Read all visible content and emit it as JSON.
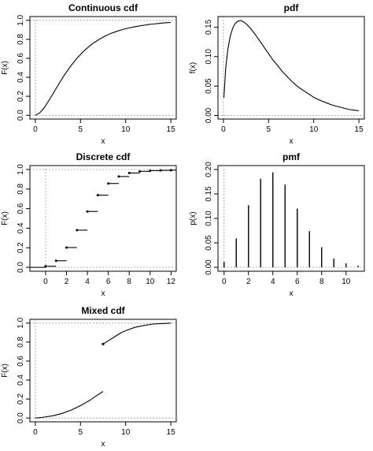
{
  "chart_data": [
    {
      "id": "continuous-cdf",
      "type": "line",
      "title": "Continuous cdf",
      "xlabel": "x",
      "ylabel": "F(x)",
      "xlim": [
        -0.6,
        15.6
      ],
      "ylim": [
        -0.04,
        1.04
      ],
      "xticks": [
        0,
        5,
        10,
        15
      ],
      "yticks": [
        0.0,
        0.2,
        0.4,
        0.6,
        0.8,
        1.0
      ],
      "ytick_labels": [
        "0.0",
        "0.2",
        "0.4",
        "0.6",
        "0.8",
        "1.0"
      ],
      "ref_hlines": [
        0,
        1
      ],
      "ref_vline": 0,
      "x": [
        0,
        0.5,
        1,
        1.5,
        2,
        2.5,
        3,
        3.5,
        4,
        4.5,
        5,
        5.5,
        6,
        6.5,
        7,
        7.5,
        8,
        8.5,
        9,
        9.5,
        10,
        10.5,
        11,
        11.5,
        12,
        12.5,
        13,
        13.5,
        14,
        14.5,
        15
      ],
      "y": [
        0.0,
        0.026,
        0.081,
        0.155,
        0.234,
        0.314,
        0.391,
        0.463,
        0.529,
        0.588,
        0.641,
        0.688,
        0.729,
        0.765,
        0.796,
        0.823,
        0.847,
        0.867,
        0.884,
        0.899,
        0.912,
        0.923,
        0.933,
        0.941,
        0.949,
        0.955,
        0.961,
        0.966,
        0.971,
        0.975,
        0.978
      ]
    },
    {
      "id": "pdf",
      "type": "line",
      "title": "pdf",
      "xlabel": "x",
      "ylabel": "f(x)",
      "xlim": [
        -0.6,
        15.6
      ],
      "ylim": [
        -0.006,
        0.168
      ],
      "xticks": [
        0,
        5,
        10,
        15
      ],
      "yticks": [
        0.0,
        0.05,
        0.1,
        0.15
      ],
      "ytick_labels": [
        "0.00",
        "0.05",
        "0.10",
        "0.15"
      ],
      "ref_hlines": [
        0
      ],
      "ref_vline": 0,
      "x": [
        0.05,
        0.25,
        0.5,
        0.75,
        1,
        1.25,
        1.5,
        1.75,
        2,
        2.5,
        3,
        3.5,
        4,
        4.5,
        5,
        5.5,
        6,
        6.5,
        7,
        7.5,
        8,
        8.5,
        9,
        9.5,
        10,
        10.5,
        11,
        11.5,
        12,
        12.5,
        13,
        13.5,
        14,
        14.5,
        15
      ],
      "y": [
        0.03,
        0.08,
        0.113,
        0.134,
        0.147,
        0.155,
        0.159,
        0.161,
        0.161,
        0.156,
        0.148,
        0.138,
        0.127,
        0.116,
        0.105,
        0.094,
        0.085,
        0.075,
        0.067,
        0.059,
        0.052,
        0.046,
        0.041,
        0.036,
        0.031,
        0.027,
        0.024,
        0.021,
        0.018,
        0.016,
        0.014,
        0.012,
        0.01,
        0.009,
        0.008
      ]
    },
    {
      "id": "discrete-cdf",
      "type": "step",
      "title": "Discrete cdf",
      "xlabel": "x",
      "ylabel": "F(x)",
      "xlim": [
        -1.5,
        12.5
      ],
      "ylim": [
        -0.04,
        1.04
      ],
      "xticks": [
        0,
        2,
        4,
        6,
        8,
        10,
        12
      ],
      "yticks": [
        0.0,
        0.2,
        0.4,
        0.6,
        0.8,
        1.0
      ],
      "ytick_labels": [
        "0.0",
        "0.2",
        "0.4",
        "0.6",
        "0.8",
        "1.0"
      ],
      "ref_hlines": [
        0,
        1
      ],
      "ref_vline": 0,
      "x": [
        -2,
        0,
        1,
        2,
        3,
        4,
        5,
        6,
        7,
        8,
        9,
        10,
        11,
        12
      ],
      "y": [
        0.0,
        0.011,
        0.067,
        0.202,
        0.38,
        0.571,
        0.738,
        0.857,
        0.928,
        0.964,
        0.981,
        0.988,
        0.991,
        0.993
      ]
    },
    {
      "id": "pmf",
      "type": "bar",
      "title": "pmf",
      "xlabel": "x",
      "ylabel": "p(x)",
      "xlim": [
        -0.5,
        11.5
      ],
      "ylim": [
        -0.008,
        0.208
      ],
      "xticks": [
        0,
        2,
        4,
        6,
        8,
        10
      ],
      "yticks": [
        0.0,
        0.05,
        0.1,
        0.15,
        0.2
      ],
      "ytick_labels": [
        "0.00",
        "0.05",
        "0.10",
        "0.15",
        "0.20"
      ],
      "ref_hlines": [
        0
      ],
      "ref_vline": 0,
      "x": [
        0,
        1,
        2,
        3,
        4,
        5,
        6,
        7,
        8,
        9,
        10,
        11
      ],
      "y": [
        0.011,
        0.059,
        0.127,
        0.181,
        0.194,
        0.169,
        0.12,
        0.074,
        0.041,
        0.018,
        0.008,
        0.003
      ]
    },
    {
      "id": "mixed-cdf",
      "type": "line",
      "title": "Mixed cdf",
      "xlabel": "x",
      "ylabel": "F(x)",
      "xlim": [
        -0.6,
        15.6
      ],
      "ylim": [
        -0.04,
        1.04
      ],
      "xticks": [
        0,
        5,
        10,
        15
      ],
      "yticks": [
        0.0,
        0.2,
        0.4,
        0.6,
        0.8,
        1.0
      ],
      "ytick_labels": [
        "0.0",
        "0.2",
        "0.4",
        "0.6",
        "0.8",
        "1.0"
      ],
      "ref_hlines": [
        0,
        1
      ],
      "ref_vline": 0,
      "segments": [
        {
          "x": [
            0,
            1,
            2,
            3,
            4,
            5,
            6,
            7,
            7.5
          ],
          "y": [
            0.0,
            0.01,
            0.025,
            0.05,
            0.085,
            0.13,
            0.185,
            0.25,
            0.28
          ]
        },
        {
          "x": [
            7.5,
            8,
            8.5,
            9,
            9.5,
            10,
            11,
            12,
            13,
            14,
            15
          ],
          "y": [
            0.78,
            0.81,
            0.84,
            0.87,
            0.9,
            0.92,
            0.955,
            0.975,
            0.99,
            0.995,
            1.0
          ]
        }
      ],
      "jump_point": [
        7.5,
        0.78
      ]
    }
  ]
}
